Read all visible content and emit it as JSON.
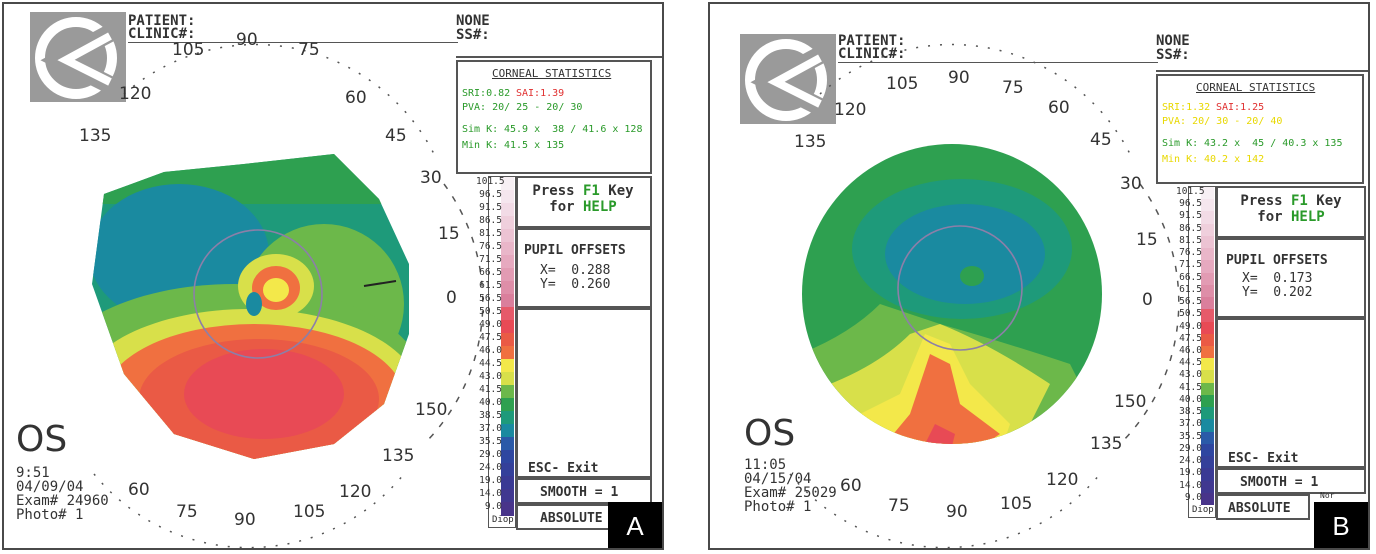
{
  "panels": [
    {
      "id": "A",
      "panel_label": "A",
      "header": {
        "patient": "PATIENT:",
        "clinic": "CLINIC#:",
        "none": "NONE",
        "ss": "SS#:"
      },
      "corneal_statistics": {
        "title": "CORNEAL STATISTICS",
        "sri": "SRI:0.82",
        "sai": "SAI:1.39",
        "pva": "PVA: 20/ 25 - 20/ 30",
        "sim_k_label": "Sim K:",
        "sim_k_value": "45.9 x  38 / 41.6 x 128",
        "min_k_label": "Min K:",
        "min_k_value": "41.5 x 135"
      },
      "help": {
        "line1_pre": "Press ",
        "line1_key": "F1",
        "line1_post": " Key",
        "line2_pre": "for ",
        "line2_key": "HELP"
      },
      "pupil_offsets": {
        "title": "PUPIL OFFSETS",
        "x": "X=  0.288",
        "y": "Y=  0.260"
      },
      "buttons": {
        "esc": "ESC- Exit",
        "smooth": "SMOOTH = 1",
        "absolute": "ABSOLUTE"
      },
      "eye": {
        "side": "OS",
        "time": "9:51",
        "date": "04/09/04",
        "exam": "Exam# 24960",
        "photo": "Photo# 1"
      },
      "scale_labels": [
        "101.5",
        "96.5",
        "91.5",
        "86.5",
        "81.5",
        "76.5",
        "71.5",
        "66.5",
        "61.5",
        "56.5",
        "50.5",
        "49.0",
        "47.5",
        "46.0",
        "44.5",
        "43.0",
        "41.5",
        "40.0",
        "38.5",
        "37.0",
        "35.5",
        "29.0",
        "24.0",
        "19.0",
        "14.0",
        "9.0"
      ],
      "scale_unit": "Diop",
      "degree_labels": [
        "105",
        "90",
        "75",
        "60",
        "45",
        "30",
        "15",
        "0",
        "150",
        "135",
        "120",
        "105",
        "90",
        "75",
        "60",
        "120",
        "135"
      ]
    },
    {
      "id": "B",
      "panel_label": "B",
      "header": {
        "patient": "PATIENT:",
        "clinic": "CLINIC#:",
        "none": "NONE",
        "ss": "SS#:"
      },
      "corneal_statistics": {
        "title": "CORNEAL STATISTICS",
        "sri": "SRI:1.32",
        "sai": "SAI:1.25",
        "pva": "PVA: 20/ 30 - 20/ 40",
        "sim_k_label": "Sim K:",
        "sim_k_value": "43.2 x  45 / 40.3 x 135",
        "min_k_label": "Min K:",
        "min_k_value": "40.2 x 142"
      },
      "help": {
        "line1_pre": "Press ",
        "line1_key": "F1",
        "line1_post": " Key",
        "line2_pre": "for ",
        "line2_key": "HELP"
      },
      "pupil_offsets": {
        "title": "PUPIL OFFSETS",
        "x": "X=  0.173",
        "y": "Y=  0.202"
      },
      "buttons": {
        "esc": "ESC- Exit",
        "smooth": "SMOOTH = 1",
        "absolute": "ABSOLUTE",
        "corner": "Nor"
      },
      "eye": {
        "side": "OS",
        "time": "11:05",
        "date": "04/15/04",
        "exam": "Exam# 25029",
        "photo": "Photo# 1"
      },
      "scale_labels": [
        "101.5",
        "96.5",
        "91.5",
        "86.5",
        "81.5",
        "76.5",
        "71.5",
        "66.5",
        "61.5",
        "56.5",
        "50.5",
        "49.0",
        "47.5",
        "46.0",
        "44.5",
        "43.0",
        "41.5",
        "40.0",
        "38.5",
        "37.0",
        "35.5",
        "29.0",
        "24.0",
        "19.0",
        "14.0",
        "9.0"
      ],
      "scale_unit": "Diop",
      "degree_labels": [
        "105",
        "90",
        "75",
        "60",
        "45",
        "30",
        "15",
        "0",
        "150",
        "135",
        "120",
        "105",
        "90",
        "75",
        "60",
        "120",
        "135"
      ]
    }
  ],
  "colors": {
    "scale": [
      "#f7f0f4",
      "#f5e6ee",
      "#f2dbe6",
      "#efcfdc",
      "#ecc3d3",
      "#e9b6c9",
      "#e6a9bf",
      "#e29bb3",
      "#de8ea8",
      "#da7f9c",
      "#e65a6a",
      "#e84a55",
      "#ea5a45",
      "#f07040",
      "#f3e84a",
      "#d8e04a",
      "#6cb84a",
      "#2ea050",
      "#1e9a7a",
      "#1a8aa0",
      "#2a5aa8",
      "#2e46a0",
      "#34409a",
      "#3a3a94",
      "#403890",
      "#48348a"
    ],
    "accent_green": "#2a9a2a",
    "accent_red": "#e03030",
    "accent_yellow": "#e8d800"
  }
}
